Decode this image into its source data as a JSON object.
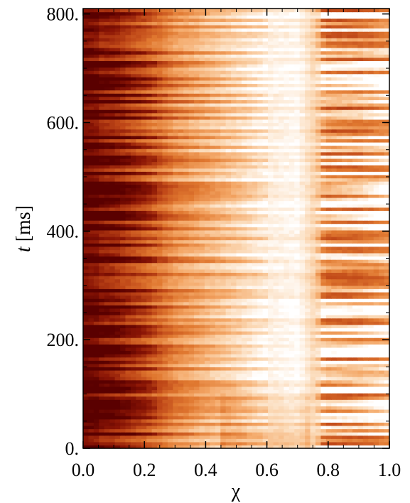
{
  "chart_data": {
    "type": "heatmap",
    "title": "",
    "xlabel": "χ",
    "ylabel_var": "t",
    "ylabel_unit": " [ms]",
    "xlim": [
      0.0,
      1.0
    ],
    "ylim": [
      0,
      810
    ],
    "xticks": [
      0.0,
      0.2,
      0.4,
      0.6,
      0.8,
      1.0
    ],
    "xtick_labels": [
      "0.0",
      "0.2",
      "0.4",
      "0.6",
      "0.8",
      "1.0"
    ],
    "yticks": [
      0,
      200,
      400,
      600,
      800
    ],
    "ytick_labels": [
      "0.",
      "200.",
      "400.",
      "600.",
      "800."
    ],
    "grid": false,
    "colormap": {
      "name": "dark-red-to-white",
      "stops": [
        "#5a0000",
        "#8a1505",
        "#c04818",
        "#e07830",
        "#f4a868",
        "#fbd8b4",
        "#ffffff"
      ]
    },
    "z_description_samples": {
      "chi": [
        0.0,
        0.1,
        0.2,
        0.3,
        0.4,
        0.5,
        0.6,
        0.7,
        0.8,
        0.9,
        1.0
      ],
      "mean_brightness": [
        0.05,
        0.12,
        0.3,
        0.55,
        0.68,
        0.8,
        0.93,
        0.97,
        0.7,
        0.72,
        0.85
      ]
    }
  }
}
